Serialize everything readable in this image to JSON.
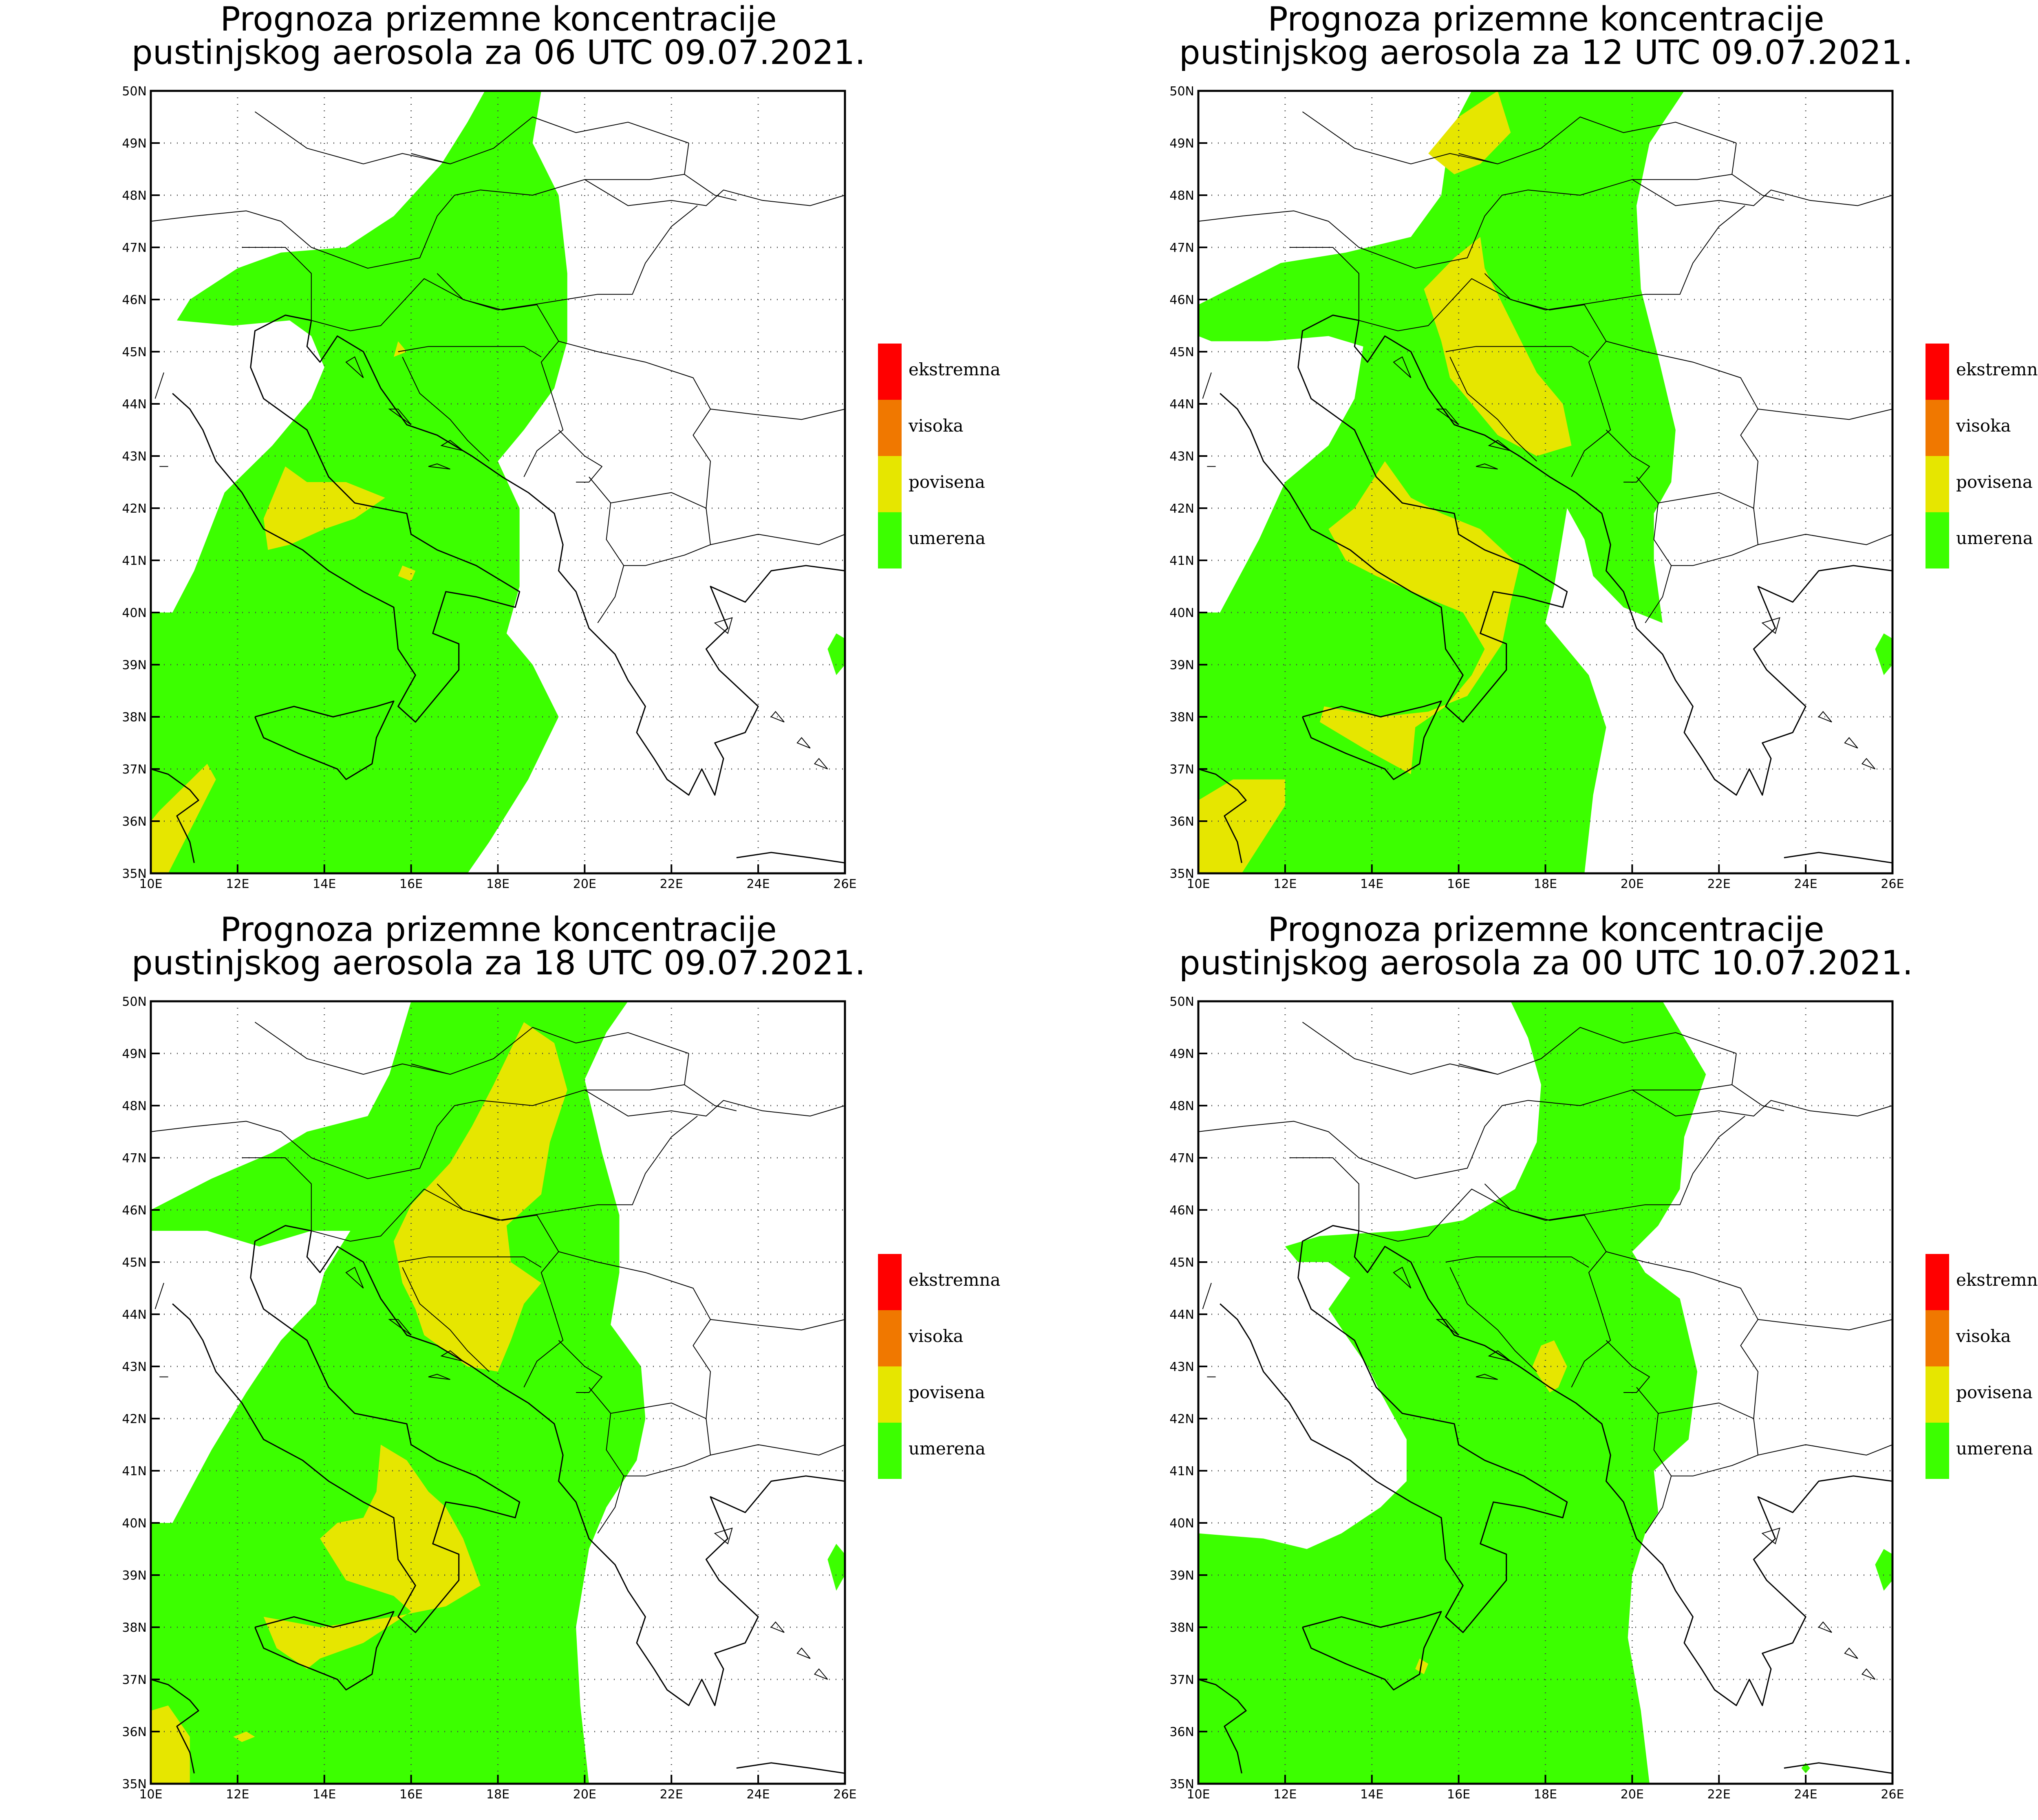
{
  "figure": {
    "panels": [
      {
        "title_line1": "Prognoza prizemne koncentracije",
        "title_line2": "pustinjskog aerosola za 06 UTC 09.07.2021."
      },
      {
        "title_line1": "Prognoza prizemne koncentracije",
        "title_line2": "pustinjskog aerosola za 12 UTC 09.07.2021."
      },
      {
        "title_line1": "Prognoza prizemne koncentracije",
        "title_line2": "pustinjskog aerosola za 18 UTC 09.07.2021."
      },
      {
        "title_line1": "Prognoza prizemne koncentracije",
        "title_line2": "pustinjskog aerosola za 00 UTC 10.07.2021."
      }
    ],
    "x_ticks": [
      "10E",
      "12E",
      "14E",
      "16E",
      "18E",
      "20E",
      "22E",
      "24E",
      "26E"
    ],
    "y_ticks": [
      "35N",
      "36N",
      "37N",
      "38N",
      "39N",
      "40N",
      "41N",
      "42N",
      "43N",
      "44N",
      "45N",
      "46N",
      "47N",
      "48N",
      "49N",
      "50N"
    ],
    "legend": [
      {
        "label": "ekstremna",
        "color": "#ff0000"
      },
      {
        "label": "visoka",
        "color": "#f07800"
      },
      {
        "label": "povisena",
        "color": "#e6e600"
      },
      {
        "label": "umerena",
        "color": "#3cff00"
      }
    ]
  }
}
